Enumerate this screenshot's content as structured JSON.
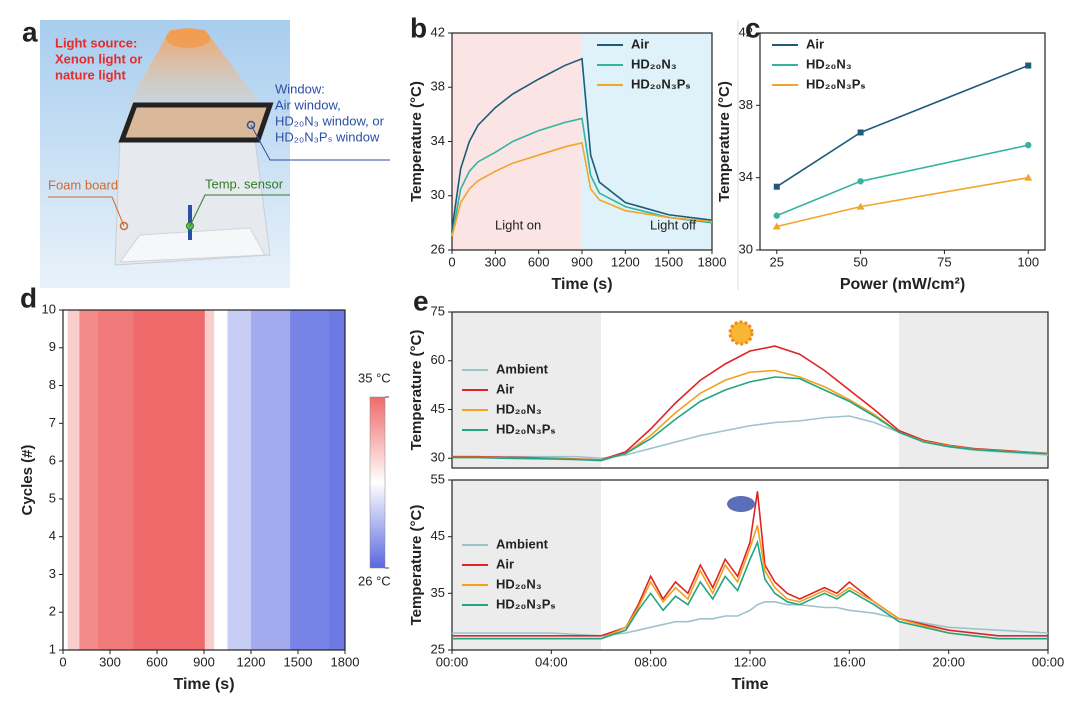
{
  "diagram": {
    "panel": "a",
    "light_source": [
      "Light source:",
      "Xenon light or",
      "nature light"
    ],
    "window": [
      "Window:",
      "Air window,",
      "HD₂₀N₃ window, or",
      "HD₂₀N₃Pₛ window"
    ],
    "foam_board": "Foam board",
    "sensor": "Temp. sensor"
  },
  "chart_data": [
    {
      "type": "line",
      "panel": "b",
      "xlabel": "Time (s)",
      "ylabel": "Temperature (°C)",
      "x": [
        0,
        60,
        120,
        180,
        300,
        420,
        600,
        780,
        900,
        960,
        1020,
        1200,
        1500,
        1800
      ],
      "xlim": [
        0,
        1800
      ],
      "xticks": [
        0,
        300,
        600,
        900,
        1200,
        1500,
        1800
      ],
      "ylim": [
        26,
        42
      ],
      "yticks": [
        26,
        30,
        34,
        38,
        42
      ],
      "regions": [
        {
          "x": [
            0,
            900
          ],
          "color": "#fbe4e4"
        },
        {
          "x": [
            900,
            1800
          ],
          "color": "#dff2fa"
        }
      ],
      "annotations": [
        "Light on",
        "Light off"
      ],
      "legend": "upper right",
      "series": [
        {
          "name": "Air",
          "color": "#1d5b78",
          "values": [
            27.5,
            32,
            34,
            35.2,
            36.5,
            37.5,
            38.6,
            39.6,
            40.1,
            33,
            31,
            29.5,
            28.6,
            28.2
          ]
        },
        {
          "name": "HD₂₀N₃",
          "color": "#36b3a0",
          "values": [
            27,
            30.5,
            31.8,
            32.5,
            33.2,
            34,
            34.8,
            35.4,
            35.7,
            31.5,
            30.2,
            29.2,
            28.4,
            28
          ]
        },
        {
          "name": "HD₂₀N₃Pₛ",
          "color": "#f0a62a",
          "values": [
            27,
            29.5,
            30.5,
            31.1,
            31.8,
            32.4,
            33,
            33.6,
            33.9,
            30.5,
            29.7,
            28.9,
            28.4,
            28.1
          ]
        }
      ]
    },
    {
      "type": "line",
      "panel": "c",
      "xlabel": "Power (mW/cm²)",
      "ylabel": "Temperature (°C)",
      "x": [
        25,
        50,
        100
      ],
      "xlim": [
        20,
        105
      ],
      "xticks": [
        25,
        50,
        75,
        100
      ],
      "ylim": [
        30,
        42
      ],
      "yticks": [
        30,
        34,
        38,
        42
      ],
      "legend": "upper left",
      "series": [
        {
          "name": "Air",
          "color": "#1d5b78",
          "marker": "square",
          "values": [
            33.5,
            36.5,
            40.2
          ]
        },
        {
          "name": "HD₂₀N₃",
          "color": "#36b3a0",
          "marker": "circle",
          "values": [
            31.9,
            33.8,
            35.8
          ]
        },
        {
          "name": "HD₂₀N₃Pₛ",
          "color": "#f0a62a",
          "marker": "triangle",
          "values": [
            31.3,
            32.4,
            34.0
          ]
        }
      ]
    },
    {
      "type": "heatmap",
      "panel": "d",
      "xlabel": "Time (s)",
      "ylabel": "Cycles (#)",
      "x": [
        0,
        60,
        150,
        300,
        600,
        880,
        930,
        1000,
        1100,
        1300,
        1600,
        1800
      ],
      "values": [
        30.5,
        32,
        34,
        34.5,
        35,
        35,
        32,
        30.5,
        29,
        28,
        26.8,
        26.5
      ],
      "xlim": [
        0,
        1800
      ],
      "xticks": [
        0,
        300,
        600,
        900,
        1200,
        1500,
        1800
      ],
      "ylim": [
        1,
        10
      ],
      "yticks": [
        1,
        2,
        3,
        4,
        5,
        6,
        7,
        8,
        9,
        10
      ],
      "clim": [
        26,
        35
      ],
      "colormap": [
        "#5a68e0",
        "#ffffff",
        "#ef6a6a"
      ],
      "cticks": [
        {
          "value": 35,
          "label": "35 °C"
        },
        {
          "value": 26,
          "label": "26 °C"
        }
      ]
    },
    {
      "type": "line",
      "panel": "e",
      "ylabel": "Temperature (°C)",
      "x": [
        0,
        1,
        2,
        3,
        4,
        5,
        6,
        7,
        8,
        9,
        10,
        11,
        12,
        13,
        14,
        15,
        16,
        17,
        18,
        19,
        20,
        21,
        22,
        23,
        24
      ],
      "xlim": [
        0,
        24
      ],
      "ylim": [
        27,
        75
      ],
      "yticks": [
        30,
        45,
        60,
        75
      ],
      "regions": [
        {
          "x": [
            0,
            6
          ],
          "color": "#ececec"
        },
        {
          "x": [
            18,
            24
          ],
          "color": "#ececec"
        }
      ],
      "legend": "center left",
      "series": [
        {
          "name": "Ambient",
          "color": "#9cc3cb",
          "values": [
            30.5,
            30.5,
            30.5,
            30.5,
            30.5,
            30.5,
            30,
            31,
            33,
            35,
            37,
            38.5,
            40,
            41,
            41.5,
            42.5,
            43,
            41,
            38,
            35,
            33.5,
            32.5,
            32,
            31.5,
            31
          ]
        },
        {
          "name": "Air",
          "color": "#e02424",
          "values": [
            30.5,
            30.5,
            30.3,
            30.2,
            30,
            29.8,
            29.5,
            32,
            39,
            47,
            54,
            59,
            63,
            64.5,
            62,
            57,
            51,
            45,
            38.5,
            35.5,
            34,
            33,
            32.5,
            32,
            31.5
          ]
        },
        {
          "name": "HD₂₀N₃",
          "color": "#f2a11f",
          "values": [
            30.3,
            30.3,
            30.1,
            30,
            29.9,
            29.7,
            29.4,
            31.5,
            37,
            44,
            50,
            54,
            56.5,
            57,
            55,
            52,
            48,
            43.5,
            38,
            35.2,
            33.8,
            32.8,
            32.3,
            31.9,
            31.5
          ]
        },
        {
          "name": "HD₂₀N₃Pₛ",
          "color": "#22a584",
          "values": [
            30.2,
            30.2,
            30,
            29.9,
            29.8,
            29.6,
            29.3,
            31.5,
            36,
            42,
            47.5,
            51,
            53.5,
            55,
            54.5,
            51,
            47.5,
            43,
            38,
            35,
            33.6,
            32.7,
            32.2,
            31.8,
            31.4
          ]
        }
      ]
    },
    {
      "type": "line",
      "xlabel": "Time",
      "ylabel": "Temperature (°C)",
      "x": [
        0,
        2,
        4,
        6,
        7,
        7.5,
        8,
        8.5,
        9,
        9.5,
        10,
        10.5,
        11,
        11.5,
        12,
        12.3,
        12.6,
        13,
        13.5,
        14,
        15,
        15.5,
        16,
        17,
        18,
        20,
        22,
        24
      ],
      "xlim": [
        0,
        24
      ],
      "xticks": [
        {
          "value": 0,
          "label": "00:00"
        },
        {
          "value": 4,
          "label": "04:00"
        },
        {
          "value": 8,
          "label": "08:00"
        },
        {
          "value": 12,
          "label": "12:00"
        },
        {
          "value": 16,
          "label": "16:00"
        },
        {
          "value": 20,
          "label": "20:00"
        },
        {
          "value": 24,
          "label": "00:00"
        }
      ],
      "ylim": [
        25,
        55
      ],
      "yticks": [
        25,
        35,
        45,
        55
      ],
      "regions": [
        {
          "x": [
            0,
            6
          ],
          "color": "#ececec"
        },
        {
          "x": [
            18,
            24
          ],
          "color": "#ececec"
        }
      ],
      "legend": "center left",
      "series": [
        {
          "name": "Ambient",
          "color": "#9cc3cb",
          "values": [
            28,
            28,
            28,
            27.5,
            28,
            28.5,
            29,
            29.5,
            30,
            30,
            30.5,
            30.5,
            31,
            31,
            32,
            33,
            33.5,
            33.5,
            33,
            33,
            32.5,
            32.5,
            32,
            31.5,
            30.5,
            29,
            28.5,
            28
          ]
        },
        {
          "name": "Air",
          "color": "#e02424",
          "values": [
            27.5,
            27.5,
            27.5,
            27.5,
            29,
            33,
            38,
            34,
            37,
            35,
            40,
            36,
            41,
            38,
            44,
            53,
            40,
            37,
            35,
            34,
            36,
            35,
            37,
            33.5,
            30.5,
            28.5,
            27.5,
            27.5
          ]
        },
        {
          "name": "HD₂₀N₃",
          "color": "#f2a11f",
          "values": [
            27,
            27,
            27,
            27,
            29,
            32.5,
            37,
            33.5,
            36,
            34,
            39,
            35,
            40,
            37,
            43,
            47,
            39,
            36,
            34,
            33.5,
            35.5,
            34.5,
            36,
            33.5,
            30.5,
            28,
            27,
            27
          ]
        },
        {
          "name": "HD₂₀N₃Pₛ",
          "color": "#22a584",
          "values": [
            27,
            27,
            27,
            27,
            28.5,
            32,
            35,
            32,
            34.5,
            33,
            37,
            34,
            38,
            35.5,
            41,
            44,
            37.5,
            35,
            33.5,
            33,
            35,
            34,
            35.5,
            33,
            30,
            28,
            27,
            27
          ]
        }
      ]
    }
  ]
}
